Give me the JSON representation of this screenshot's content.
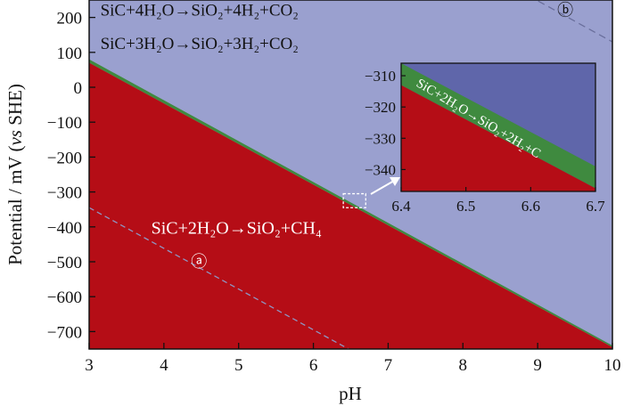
{
  "chart_data": {
    "type": "area",
    "xlabel": "pH",
    "ylabel": "Potential / mV (vs SHE)",
    "xlim": [
      3,
      10
    ],
    "ylim": [
      -750,
      250
    ],
    "x_ticks": [
      "3",
      "4",
      "5",
      "6",
      "7",
      "8",
      "9",
      "10"
    ],
    "y_ticks": [
      "200",
      "100",
      "0",
      "−100",
      "−200",
      "−300",
      "−400",
      "−500",
      "−600",
      "−700"
    ],
    "grid": false,
    "colors": {
      "upper_region": "#9aa0cf",
      "lower_region": "#b50d16",
      "boundary_band": "#3f8a3f",
      "inset_upper_region": "#5f66aa",
      "dashed_line": "#8e96c2"
    },
    "boundaries": [
      {
        "name": "SiC+2H2O→SiO2+CH4 / SiC+2H2O→SiO2+2H2+C (lower)",
        "x": [
          3,
          10
        ],
        "y": [
          70,
          -745
        ]
      },
      {
        "name": "SiC+2H2O→SiO2+2H2+C (upper)",
        "x": [
          3,
          10
        ],
        "y": [
          80,
          -740
        ]
      }
    ],
    "dashed_lines": [
      {
        "label": "a",
        "x": [
          3,
          6.6
        ],
        "y": [
          -345,
          -765
        ]
      },
      {
        "label": "b",
        "x": [
          8.6,
          10
        ],
        "y": [
          295,
          130
        ]
      }
    ],
    "region_labels": [
      {
        "text": "SiC+4H₂O→SiO₂+4H₂+CO₂",
        "pH": 3.15,
        "mV": 205
      },
      {
        "text": "SiC+3H₂O→SiO₂+3H₂+CO₂",
        "pH": 3.15,
        "mV": 110
      },
      {
        "text": "SiC+2H₂O→SiO₂+CH₄",
        "pH": 3.83,
        "mV": -420
      }
    ],
    "markers": [
      {
        "text": "ⓐ",
        "pH": 4.47,
        "mV": -515
      },
      {
        "text": "ⓑ",
        "pH": 9.37,
        "mV": 205
      }
    ],
    "inset": {
      "xlim": [
        6.4,
        6.7
      ],
      "ylim": [
        -347,
        -306
      ],
      "x_ticks": [
        "6.4",
        "6.5",
        "6.6",
        "6.7"
      ],
      "y_ticks": [
        "−310",
        "−320",
        "−330",
        "−340"
      ],
      "lower_line": {
        "x": [
          6.4,
          6.7
        ],
        "y": [
          -313,
          -346
        ]
      },
      "upper_line": {
        "x": [
          6.4,
          6.7
        ],
        "y": [
          -306,
          -339
        ]
      },
      "label": "SiC+2H₂O→SiO₂+2H₂+C",
      "source_box": {
        "x": [
          6.4,
          6.7
        ],
        "y": [
          -345,
          -305
        ]
      }
    }
  }
}
